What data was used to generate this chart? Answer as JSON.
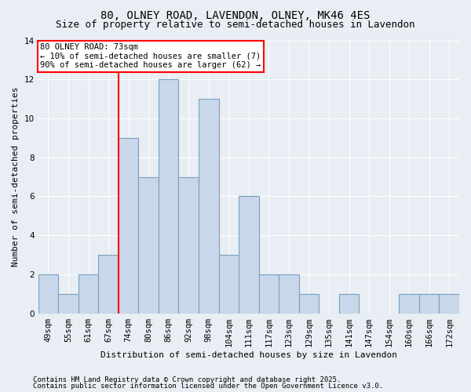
{
  "title1": "80, OLNEY ROAD, LAVENDON, OLNEY, MK46 4ES",
  "title2": "Size of property relative to semi-detached houses in Lavendon",
  "xlabel": "Distribution of semi-detached houses by size in Lavendon",
  "ylabel": "Number of semi-detached properties",
  "categories": [
    "49sqm",
    "55sqm",
    "61sqm",
    "67sqm",
    "74sqm",
    "80sqm",
    "86sqm",
    "92sqm",
    "98sqm",
    "104sqm",
    "111sqm",
    "117sqm",
    "123sqm",
    "129sqm",
    "135sqm",
    "141sqm",
    "147sqm",
    "154sqm",
    "160sqm",
    "166sqm",
    "172sqm"
  ],
  "values": [
    2,
    1,
    2,
    3,
    9,
    7,
    12,
    7,
    11,
    3,
    6,
    2,
    2,
    1,
    0,
    1,
    0,
    0,
    1,
    1,
    1
  ],
  "bar_color": "#c8d8ea",
  "bar_edge_color": "#7aa0c0",
  "vline_index": 4,
  "annotation_text": "80 OLNEY ROAD: 73sqm\n← 10% of semi-detached houses are smaller (7)\n90% of semi-detached houses are larger (62) →",
  "annotation_box_color": "white",
  "annotation_box_edge": "red",
  "vline_color": "red",
  "footer1": "Contains HM Land Registry data © Crown copyright and database right 2025.",
  "footer2": "Contains public sector information licensed under the Open Government Licence v3.0.",
  "bg_color": "#e8eef4",
  "plot_bg_color": "#e8eef4",
  "ylim": [
    0,
    14
  ],
  "title1_fontsize": 10,
  "title2_fontsize": 9,
  "axis_label_fontsize": 8,
  "tick_fontsize": 7.5,
  "annotation_fontsize": 7.5,
  "footer_fontsize": 6.5
}
